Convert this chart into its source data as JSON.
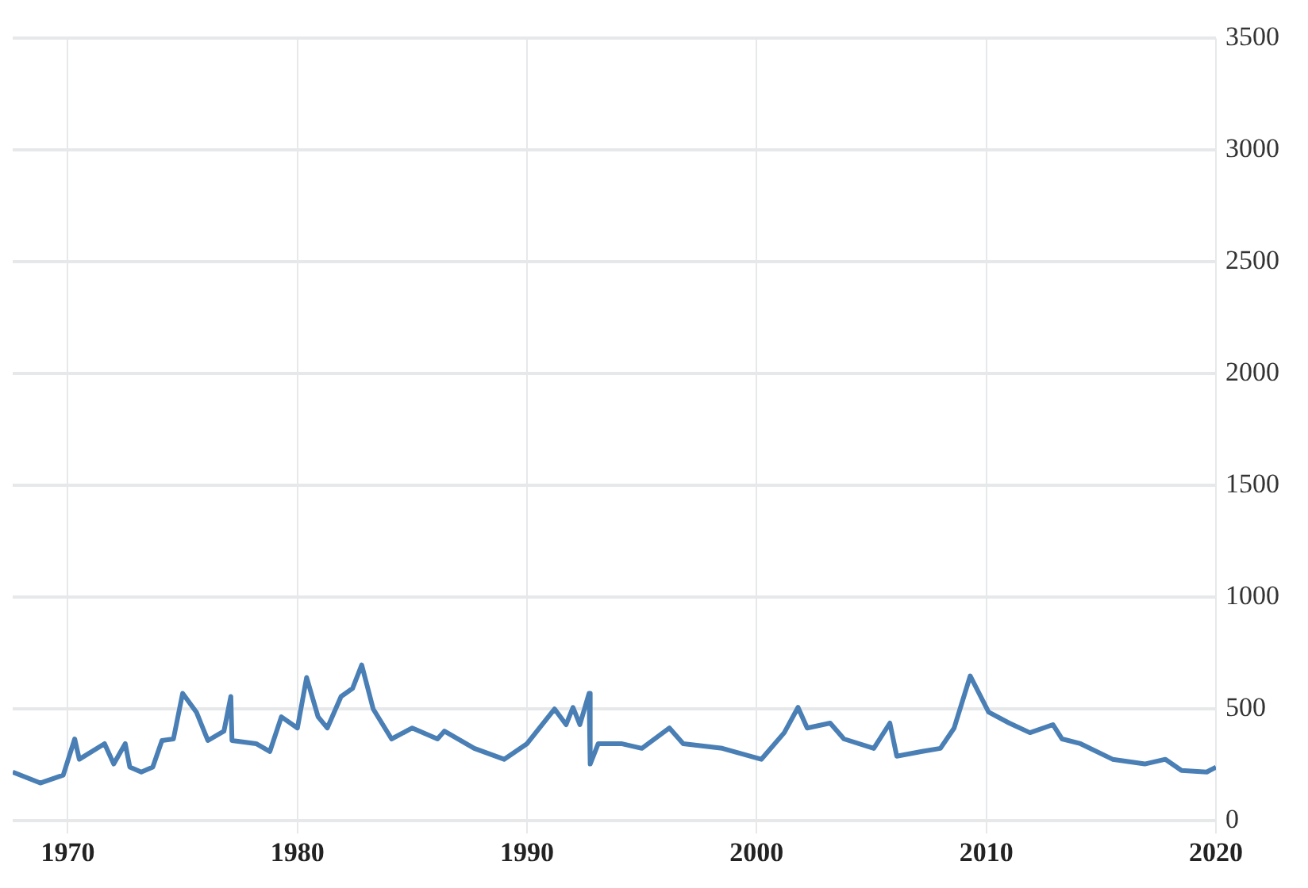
{
  "chart_data": {
    "type": "line",
    "x": [
      1967.6,
      1968.8,
      1969.8,
      1970.3,
      1970.5,
      1971.6,
      1972.0,
      1972.5,
      1972.7,
      1973.2,
      1973.7,
      1974.1,
      1974.6,
      1975.0,
      1975.6,
      1976.1,
      1976.8,
      1977.1,
      1977.15,
      1978.2,
      1978.8,
      1979.3,
      1980.0,
      1980.4,
      1980.9,
      1981.3,
      1981.9,
      1982.4,
      1982.8,
      1983.3,
      1984.1,
      1985.0,
      1986.1,
      1986.4,
      1987.7,
      1989.0,
      1990.0,
      1991.2,
      1991.7,
      1992.0,
      1992.3,
      1992.7,
      1992.75,
      1993.1,
      1994.1,
      1995.0,
      1996.2,
      1996.8,
      1998.5,
      2000.2,
      2001.2,
      2001.8,
      2002.2,
      2003.2,
      2003.8,
      2005.1,
      2005.8,
      2006.1,
      2007.2,
      2008.0,
      2008.6,
      2009.3,
      2010.1,
      2011.0,
      2011.9,
      2012.9,
      2013.3,
      2014.1,
      2015.5,
      2016.9,
      2017.8,
      2018.5,
      2019.6,
      2020.0
    ],
    "series": [
      {
        "color": "#4a7fb5",
        "values": [
          218,
          169,
          204,
          366,
          275,
          345,
          254,
          345,
          240,
          218,
          240,
          359,
          366,
          570,
          486,
          359,
          401,
          556,
          359,
          345,
          310,
          465,
          415,
          641,
          465,
          415,
          556,
          592,
          697,
          500,
          366,
          415,
          366,
          401,
          324,
          275,
          345,
          500,
          430,
          507,
          430,
          570,
          254,
          345,
          345,
          324,
          415,
          345,
          324,
          275,
          394,
          507,
          415,
          437,
          366,
          324,
          437,
          289,
          310,
          324,
          415,
          648,
          486,
          437,
          394,
          430,
          366,
          345,
          275,
          254,
          275,
          225,
          218,
          240
        ]
      }
    ],
    "xlim": [
      1967.6,
      2020
    ],
    "xticks": [
      1970,
      1980,
      1990,
      2000,
      2010,
      2020
    ],
    "ylim": [
      0,
      3500
    ],
    "yticks": [
      0,
      500,
      1000,
      1500,
      2000,
      2500,
      3000,
      3500
    ],
    "grid": true,
    "legend": false,
    "marker": "none",
    "line_style": "solid"
  }
}
